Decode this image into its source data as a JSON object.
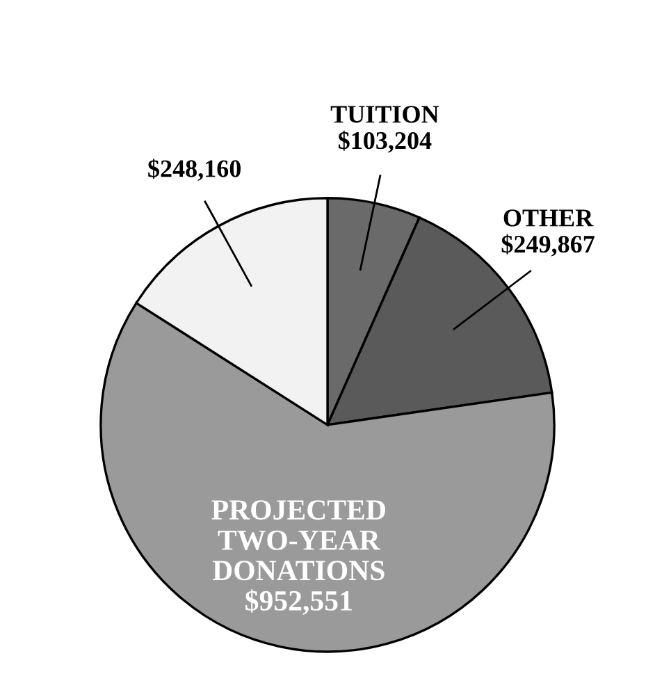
{
  "chart_data": {
    "type": "pie",
    "categories": [
      "TUITION",
      "OTHER",
      "PROJECTED TWO-YEAR DONATIONS",
      null
    ],
    "values": [
      103204,
      249867,
      952551,
      248160
    ],
    "value_labels": [
      "$103,204",
      "$249,867",
      "$952,551",
      "$248,160"
    ],
    "colors": [
      "#6a6a6a",
      "#5a5a5a",
      "#9a9a9a",
      "#f2f2f2"
    ]
  }
}
